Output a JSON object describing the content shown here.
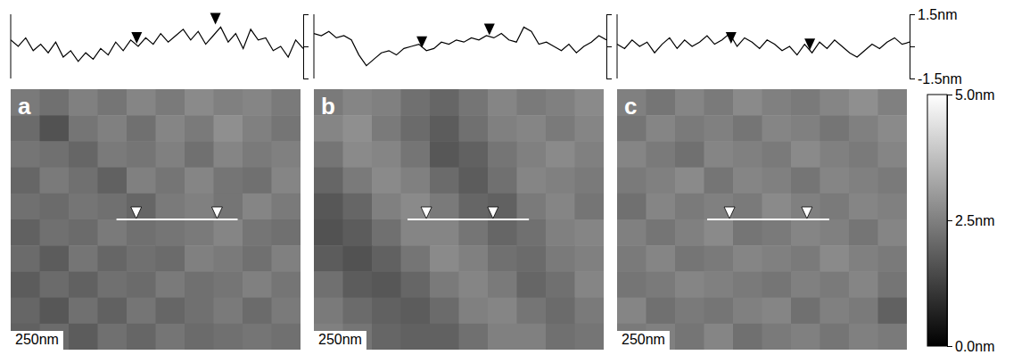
{
  "chart_data": {
    "type": "heatmap",
    "color_range": [
      0,
      5
    ],
    "color_ticks": [
      {
        "value": 5,
        "label": "5.0nm"
      },
      {
        "value": 2.5,
        "label": "2.5nm"
      },
      {
        "value": 0,
        "label": "0.0nm"
      }
    ],
    "panels": [
      {
        "title": "a",
        "annotation": "250nm",
        "xlim": [
          0,
          1000
        ],
        "ylim": [
          0,
          1000
        ],
        "line": {
          "x": [
            365,
            783
          ],
          "y": 500,
          "markers": [
            433,
            712
          ]
        },
        "cells": [
          [
            2.4,
            2.2,
            2.5,
            2.3,
            2.6,
            2.4,
            2.7,
            2.5,
            2.6,
            2.4
          ],
          [
            2.1,
            1.6,
            2.3,
            2.5,
            2.2,
            2.6,
            2.4,
            2.8,
            2.5,
            2.3
          ],
          [
            2.3,
            2.2,
            2.0,
            2.4,
            2.3,
            2.5,
            2.2,
            2.6,
            2.4,
            2.5
          ],
          [
            2.0,
            2.4,
            2.2,
            1.9,
            2.5,
            2.3,
            2.6,
            2.3,
            2.2,
            2.6
          ],
          [
            2.2,
            2.1,
            2.3,
            2.2,
            2.0,
            2.4,
            2.5,
            2.3,
            2.6,
            2.4
          ],
          [
            1.9,
            2.2,
            2.1,
            2.4,
            2.2,
            2.3,
            2.4,
            2.6,
            2.3,
            2.2
          ],
          [
            2.1,
            1.8,
            2.3,
            2.0,
            2.2,
            2.1,
            2.5,
            2.4,
            2.2,
            2.5
          ],
          [
            1.8,
            2.1,
            1.9,
            2.2,
            2.1,
            2.4,
            2.2,
            2.3,
            2.5,
            2.3
          ],
          [
            2.0,
            1.7,
            2.2,
            1.9,
            2.3,
            2.0,
            2.2,
            2.4,
            2.1,
            2.4
          ],
          [
            1.9,
            2.1,
            1.8,
            2.2,
            2.0,
            2.3,
            2.1,
            2.2,
            2.3,
            2.2
          ]
        ],
        "profile": {
          "type": "line",
          "tick_labels": false,
          "xlim": [
            0,
            39
          ],
          "ylim": [
            -1.5,
            1.5
          ],
          "yticks": [
            -1.5,
            0,
            1.5
          ],
          "markers": [
            16.8,
            27.3
          ],
          "x": [
            0,
            1,
            2,
            3,
            4,
            5,
            6,
            7,
            8,
            9,
            10,
            11,
            12,
            13,
            14,
            15,
            16,
            17,
            18,
            19,
            20,
            21,
            22,
            23,
            24,
            25,
            26,
            27,
            28,
            29,
            30,
            31,
            32,
            33,
            34,
            35,
            36,
            37,
            38,
            39
          ],
          "values": [
            0.3,
            0.0,
            0.4,
            -0.2,
            0.1,
            -0.3,
            0.2,
            -0.5,
            -0.2,
            -0.7,
            -0.3,
            -0.6,
            -0.1,
            -0.4,
            0.2,
            -0.2,
            0.3,
            0.0,
            0.4,
            0.1,
            0.6,
            0.2,
            0.5,
            0.8,
            0.3,
            0.7,
            0.1,
            0.5,
            0.9,
            0.2,
            0.6,
            -0.1,
            0.8,
            0.3,
            0.4,
            -0.2,
            0.0,
            -0.5,
            0.3,
            -0.1
          ]
        }
      },
      {
        "title": "b",
        "annotation": "250nm",
        "xlim": [
          0,
          1000
        ],
        "ylim": [
          0,
          1000
        ],
        "line": {
          "x": [
            323,
            742
          ],
          "y": 500,
          "markers": [
            388,
            618
          ]
        },
        "cells": [
          [
            2.4,
            2.6,
            2.5,
            2.2,
            2.0,
            2.3,
            2.6,
            2.4,
            2.5,
            2.7
          ],
          [
            2.6,
            2.8,
            2.4,
            2.1,
            1.8,
            2.2,
            2.5,
            2.6,
            2.4,
            2.6
          ],
          [
            2.3,
            2.7,
            2.6,
            2.3,
            1.7,
            1.9,
            2.3,
            2.5,
            2.7,
            2.5
          ],
          [
            2.0,
            2.4,
            2.7,
            2.5,
            2.1,
            1.8,
            2.2,
            2.6,
            2.5,
            2.4
          ],
          [
            1.7,
            2.0,
            2.5,
            2.7,
            2.4,
            2.0,
            1.9,
            2.4,
            2.6,
            2.3
          ],
          [
            1.6,
            1.8,
            2.2,
            2.6,
            2.6,
            2.3,
            2.0,
            2.2,
            2.5,
            2.6
          ],
          [
            1.8,
            1.6,
            1.9,
            2.3,
            2.7,
            2.5,
            2.2,
            2.1,
            2.4,
            2.5
          ],
          [
            2.2,
            1.8,
            1.7,
            2.0,
            2.4,
            2.6,
            2.4,
            2.0,
            2.2,
            2.6
          ],
          [
            2.4,
            2.1,
            1.9,
            1.8,
            2.1,
            2.5,
            2.6,
            2.3,
            2.1,
            2.4
          ],
          [
            2.5,
            2.3,
            2.0,
            1.9,
            1.9,
            2.2,
            2.5,
            2.5,
            2.2,
            2.3
          ]
        ],
        "profile": {
          "type": "line",
          "tick_labels": false,
          "xlim": [
            0,
            39
          ],
          "ylim": [
            -1.5,
            1.5
          ],
          "yticks": [
            -1.5,
            0,
            1.5
          ],
          "markers": [
            14.4,
            23.4
          ],
          "x": [
            0,
            1,
            2,
            3,
            4,
            5,
            6,
            7,
            8,
            9,
            10,
            11,
            12,
            13,
            14,
            15,
            16,
            17,
            18,
            19,
            20,
            21,
            22,
            23,
            24,
            25,
            26,
            27,
            28,
            29,
            30,
            31,
            32,
            33,
            34,
            35,
            36,
            37,
            38,
            39
          ],
          "values": [
            0.6,
            0.5,
            0.7,
            0.4,
            0.5,
            0.3,
            -0.4,
            -0.9,
            -0.6,
            -0.3,
            -0.2,
            -0.4,
            -0.1,
            0.0,
            0.1,
            -0.2,
            -0.1,
            0.2,
            0.1,
            0.3,
            0.2,
            0.4,
            0.3,
            0.5,
            0.4,
            0.6,
            0.3,
            0.2,
            0.9,
            0.7,
            0.1,
            0.2,
            0.0,
            -0.2,
            0.1,
            -0.3,
            0.0,
            0.2,
            0.5,
            0.3
          ]
        }
      },
      {
        "title": "c",
        "annotation": "250nm",
        "xlim": [
          0,
          1000
        ],
        "ylim": [
          0,
          1000
        ],
        "line": {
          "x": [
            311,
            732
          ],
          "y": 500,
          "markers": [
            388,
            655
          ]
        },
        "cells": [
          [
            2.5,
            2.3,
            2.6,
            2.4,
            2.7,
            2.5,
            2.4,
            2.6,
            2.8,
            2.5
          ],
          [
            2.3,
            2.6,
            2.4,
            2.5,
            2.3,
            2.6,
            2.5,
            2.3,
            2.5,
            2.7
          ],
          [
            2.6,
            2.4,
            2.2,
            2.6,
            2.5,
            2.4,
            2.7,
            2.5,
            2.4,
            2.6
          ],
          [
            2.4,
            2.5,
            2.7,
            2.3,
            2.6,
            2.5,
            2.3,
            2.6,
            2.5,
            2.4
          ],
          [
            2.2,
            2.6,
            2.4,
            2.5,
            2.4,
            2.7,
            2.5,
            2.4,
            2.6,
            2.5
          ],
          [
            2.5,
            2.3,
            2.5,
            2.7,
            2.3,
            2.4,
            2.6,
            2.5,
            2.3,
            2.6
          ],
          [
            2.4,
            2.6,
            2.3,
            2.4,
            2.6,
            2.5,
            2.4,
            2.7,
            2.5,
            2.4
          ],
          [
            2.3,
            2.4,
            2.6,
            2.5,
            2.4,
            2.3,
            2.5,
            2.4,
            2.6,
            2.3
          ],
          [
            2.6,
            2.2,
            2.4,
            2.3,
            2.5,
            2.6,
            2.2,
            2.5,
            2.4,
            1.9
          ],
          [
            2.4,
            2.5,
            2.3,
            2.6,
            2.2,
            2.4,
            2.5,
            2.3,
            2.5,
            2.4
          ]
        ],
        "profile": {
          "type": "line",
          "tick_labels": "y",
          "xlim": [
            0,
            39
          ],
          "ylim": [
            -1.5,
            1.5
          ],
          "yticks": [
            {
              "value": -1.5,
              "label": "-1.5nm"
            },
            {
              "value": 0,
              "label": null
            },
            {
              "value": 1.5,
              "label": "1.5nm"
            }
          ],
          "markers": [
            15.2,
            25.7
          ],
          "x": [
            0,
            1,
            2,
            3,
            4,
            5,
            6,
            7,
            8,
            9,
            10,
            11,
            12,
            13,
            14,
            15,
            16,
            17,
            18,
            19,
            20,
            21,
            22,
            23,
            24,
            25,
            26,
            27,
            28,
            29,
            30,
            31,
            32,
            33,
            34,
            35,
            36,
            37,
            38,
            39
          ],
          "values": [
            0.1,
            -0.1,
            0.3,
            0.0,
            0.2,
            -0.3,
            0.1,
            0.4,
            -0.1,
            0.3,
            0.0,
            0.2,
            0.5,
            0.1,
            0.3,
            0.6,
            0.0,
            0.4,
            0.2,
            -0.1,
            0.3,
            0.1,
            -0.2,
            0.0,
            -0.4,
            0.1,
            -0.3,
            0.2,
            -0.1,
            0.3,
            0.0,
            -0.3,
            -0.5,
            -0.2,
            0.1,
            -0.1,
            0.2,
            0.4,
            0.1,
            0.2
          ]
        }
      }
    ]
  }
}
